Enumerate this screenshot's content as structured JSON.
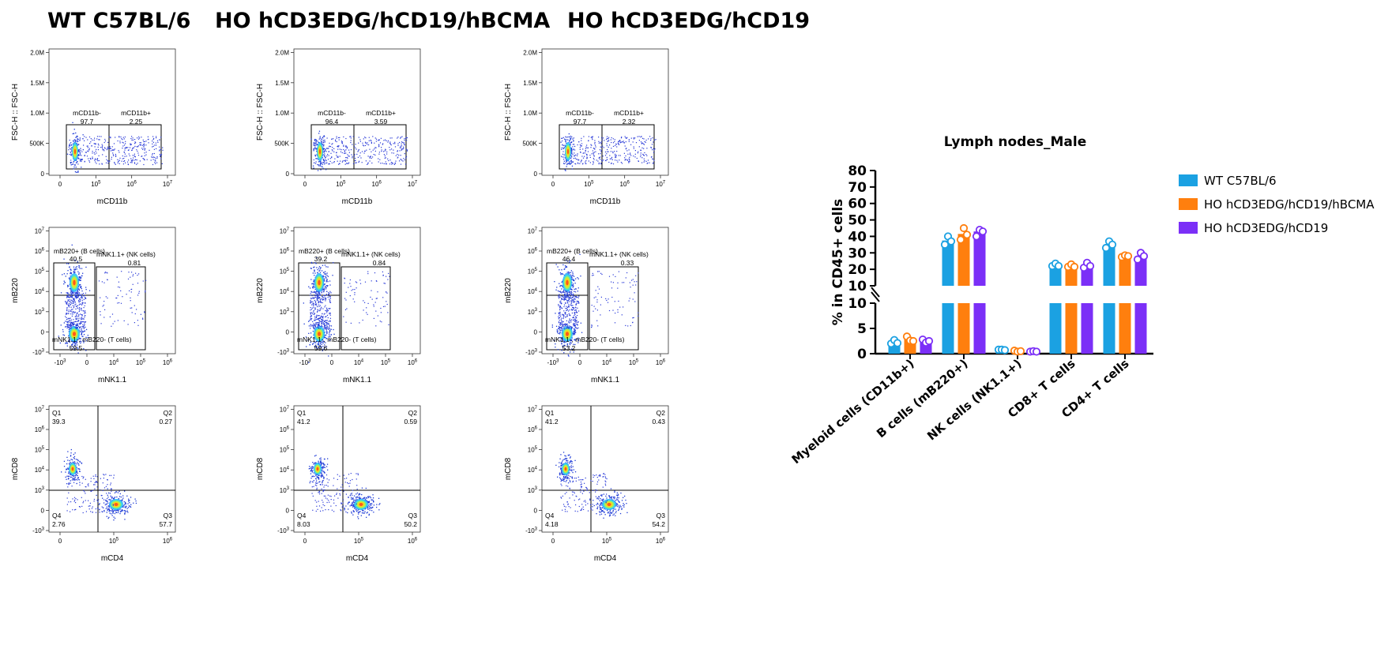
{
  "column_titles": [
    "WT C57BL/6",
    "HO hCD3EDG/hCD19/hBCMA",
    "HO hCD3EDG/hCD19"
  ],
  "flow_panels": {
    "row1": {
      "ylabel": "FSC-H :: FSC-H",
      "xlabel": "mCD11b",
      "y_ticks": [
        "0",
        "500K",
        "1.0M",
        "1.5M",
        "2.0M"
      ],
      "x_ticks": [
        "0",
        "10^5",
        "10^6",
        "10^7"
      ],
      "columns": [
        {
          "gate_left_label": "mCD11b-",
          "gate_left_value": "97.7",
          "gate_right_label": "mCD11b+",
          "gate_right_value": "2.25"
        },
        {
          "gate_left_label": "mCD11b-",
          "gate_left_value": "96.4",
          "gate_right_label": "mCD11b+",
          "gate_right_value": "3.59"
        },
        {
          "gate_left_label": "mCD11b-",
          "gate_left_value": "97.7",
          "gate_right_label": "mCD11b+",
          "gate_right_value": "2.32"
        }
      ]
    },
    "row2": {
      "ylabel": "mB220",
      "xlabel": "mNK1.1",
      "y_ticks": [
        "-10^3",
        "0",
        "10^3",
        "10^4",
        "10^5",
        "10^6",
        "10^7"
      ],
      "x_ticks": [
        "-10^3",
        "0",
        "10^4",
        "10^5",
        "10^6"
      ],
      "columns": [
        {
          "b_label": "mB220+ (B cells)",
          "b_value": "40.5",
          "nk_label": "mNK1.1+ (NK cells)",
          "nk_value": "0.81",
          "t_label": "mNK1.1-, mB220- (T cells)",
          "t_value": "59.5"
        },
        {
          "b_label": "mB220+ (B cells)",
          "b_value": "39.2",
          "nk_label": "mNK1.1+ (NK cells)",
          "nk_value": "0.84",
          "t_label": "mNK1.1-, mB220- (T cells)",
          "t_value": "59.6"
        },
        {
          "b_label": "mB220+ (B cells)",
          "b_value": "46.4",
          "nk_label": "mNK1.1+ (NK cells)",
          "nk_value": "0.33",
          "t_label": "mNK1.1-, mB220- (T cells)",
          "t_value": "53.2"
        }
      ]
    },
    "row3": {
      "ylabel": "mCD8",
      "xlabel": "mCD4",
      "y_ticks": [
        "-10^3",
        "0",
        "10^3",
        "10^4",
        "10^5",
        "10^6",
        "10^7"
      ],
      "x_ticks": [
        "0",
        "10^5",
        "10^6"
      ],
      "columns": [
        {
          "q1": "39.3",
          "q2": "0.27",
          "q3": "57.7",
          "q4": "2.76"
        },
        {
          "q1": "41.2",
          "q2": "0.59",
          "q3": "50.2",
          "q4": "8.03"
        },
        {
          "q1": "41.2",
          "q2": "0.43",
          "q3": "54.2",
          "q4": "4.18"
        }
      ],
      "quadrant_names": [
        "Q1",
        "Q2",
        "Q3",
        "Q4"
      ]
    }
  },
  "chart_data": {
    "type": "bar",
    "title": "Lymph nodes_Male",
    "ylabel": "% in CD45+ cells",
    "xlabel": "",
    "categories": [
      "Myeloid cells (CD11b+)",
      "B cells (mB220+)",
      "NK cells (NK1.1+)",
      "CD8+ T cells",
      "CD4+ T cells"
    ],
    "axis_break": {
      "lower_range": [
        0,
        10
      ],
      "upper_range": [
        10,
        80
      ]
    },
    "y_ticks_lower": [
      0,
      5,
      10
    ],
    "y_ticks_upper": [
      10,
      20,
      30,
      40,
      50,
      60,
      70,
      80
    ],
    "legend_position": "right",
    "series": [
      {
        "name": "WT C57BL/6",
        "color": "#1ba1e2",
        "values": [
          2.3,
          37.5,
          0.8,
          22.5,
          35.0
        ],
        "points": [
          [
            2.0,
            2.7,
            2.1
          ],
          [
            35.0,
            40.0,
            37.0
          ],
          [
            0.8,
            0.8,
            0.7
          ],
          [
            22.0,
            23.5,
            22.0
          ],
          [
            33.0,
            37.0,
            35.0
          ]
        ]
      },
      {
        "name": "HO hCD3EDG/hCD19/hBCMA",
        "color": "#ff7f0e",
        "values": [
          2.8,
          41.5,
          0.5,
          22.0,
          28.0
        ],
        "points": [
          [
            3.4,
            2.6,
            2.5
          ],
          [
            38.0,
            45.0,
            41.0
          ],
          [
            0.6,
            0.4,
            0.5
          ],
          [
            21.5,
            23.0,
            21.5
          ],
          [
            27.5,
            28.5,
            28.0
          ]
        ]
      },
      {
        "name": "HO hCD3EDG/hCD19",
        "color": "#7b2ff7",
        "values": [
          2.5,
          43.0,
          0.4,
          22.5,
          28.0
        ],
        "points": [
          [
            2.8,
            2.2,
            2.5
          ],
          [
            40.0,
            44.0,
            43.0
          ],
          [
            0.4,
            0.5,
            0.4
          ],
          [
            21.0,
            24.0,
            22.0
          ],
          [
            26.0,
            30.0,
            28.0
          ]
        ]
      }
    ]
  }
}
